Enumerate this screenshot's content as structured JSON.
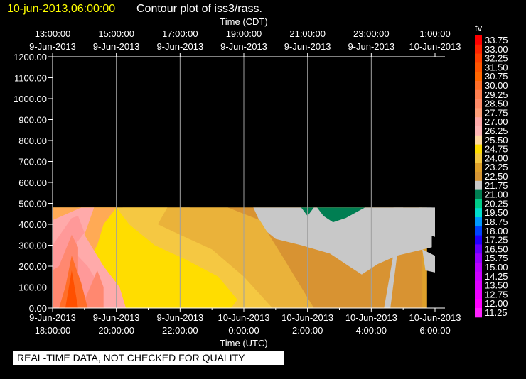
{
  "header": {
    "date": "10-jun-2013,06:00:00",
    "title": "Contour plot of iss3/rass."
  },
  "notice": "REAL-TIME DATA, NOT CHECKED FOR QUALITY",
  "chart_data": {
    "type": "heatmap",
    "top_axis": {
      "label": "Time (CDT)",
      "ticks": [
        {
          "time": "13:00:00",
          "date": "9-Jun-2013"
        },
        {
          "time": "15:00:00",
          "date": "9-Jun-2013"
        },
        {
          "time": "17:00:00",
          "date": "9-Jun-2013"
        },
        {
          "time": "19:00:00",
          "date": "9-Jun-2013"
        },
        {
          "time": "21:00:00",
          "date": "9-Jun-2013"
        },
        {
          "time": "23:00:00",
          "date": "9-Jun-2013"
        },
        {
          "time": "1:00:00",
          "date": "10-Jun-2013"
        }
      ]
    },
    "bottom_axis": {
      "label": "Time (UTC)",
      "ticks": [
        {
          "date": "9-Jun-2013",
          "time": "18:00:00"
        },
        {
          "date": "9-Jun-2013",
          "time": "20:00:00"
        },
        {
          "date": "9-Jun-2013",
          "time": "22:00:00"
        },
        {
          "date": "10-Jun-2013",
          "time": "0:00:00"
        },
        {
          "date": "10-Jun-2013",
          "time": "2:00:00"
        },
        {
          "date": "10-Jun-2013",
          "time": "4:00:00"
        },
        {
          "date": "10-Jun-2013",
          "time": "6:00:00"
        }
      ],
      "xlim_hours": [
        18,
        30
      ]
    },
    "y_axis": {
      "ticks": [
        "1200.00",
        "1100.00",
        "1000.00",
        "900.00",
        "800.00",
        "700.00",
        "600.00",
        "500.00",
        "400.00",
        "300.00",
        "200.00",
        "100.00",
        "0.00"
      ],
      "ylim": [
        0,
        1200
      ]
    },
    "legend": {
      "title": "tv",
      "placement": "right",
      "levels": [
        "33.75",
        "33.00",
        "32.25",
        "31.50",
        "30.75",
        "30.00",
        "29.25",
        "28.50",
        "27.75",
        "27.00",
        "26.25",
        "25.50",
        "24.75",
        "24.00",
        "23.25",
        "22.50",
        "21.75",
        "21.00",
        "20.25",
        "19.50",
        "18.75",
        "18.00",
        "17.25",
        "16.50",
        "15.75",
        "15.00",
        "14.25",
        "13.50",
        "12.75",
        "12.00",
        "11.25"
      ],
      "colors": [
        "#ff0000",
        "#ff2400",
        "#ff4000",
        "#ff5500",
        "#ff6600",
        "#ff6e28",
        "#ff7f50",
        "#ff8c69",
        "#ffa07a",
        "#ffaaaa",
        "#ffb6b6",
        "#ffd9a0",
        "#ffdd00",
        "#f5c842",
        "#dea02b",
        "#d49535",
        "#c8c8c8",
        "#007e52",
        "#00cc88",
        "#00ddcc",
        "#0099ff",
        "#0044ff",
        "#2200ff",
        "#6600ff",
        "#9900ff",
        "#bb00ff",
        "#cc00ff",
        "#dd00ff",
        "#ee00ff",
        "#ff00ff",
        "#ff22ff"
      ]
    },
    "data_top_height": 480,
    "regions": [
      {
        "tv": "23.25",
        "color": "#dea02b",
        "points": [
          [
            18.0,
            0
          ],
          [
            29.75,
            0
          ],
          [
            29.75,
            480
          ],
          [
            18.0,
            480
          ]
        ]
      },
      {
        "tv": "23.25",
        "color": "#d89332",
        "points": [
          [
            19.5,
            480
          ],
          [
            29.6,
            480
          ],
          [
            29.6,
            0
          ],
          [
            22.2,
            0
          ],
          [
            21.9,
            120
          ],
          [
            21.0,
            300
          ],
          [
            20.5,
            390
          ],
          [
            20.2,
            480
          ]
        ]
      },
      {
        "tv": "22.50",
        "color": "#c8c8c8",
        "points": [
          [
            24.3,
            480
          ],
          [
            29.9,
            480
          ],
          [
            29.9,
            290
          ],
          [
            28.8,
            250
          ],
          [
            28.2,
            210
          ],
          [
            27.7,
            160
          ],
          [
            27.3,
            200
          ],
          [
            26.7,
            260
          ],
          [
            25.8,
            300
          ],
          [
            25.0,
            330
          ],
          [
            24.6,
            380
          ]
        ]
      },
      {
        "tv": "22.50",
        "color": "#c8c8c8",
        "points": [
          [
            28.7,
            480
          ],
          [
            29.0,
            480
          ],
          [
            28.6,
            0
          ],
          [
            28.4,
            0
          ],
          [
            28.7,
            260
          ]
        ]
      },
      {
        "tv": "22.50",
        "color": "#c8c8c8",
        "points": [
          [
            29.5,
            480
          ],
          [
            30.0,
            480
          ],
          [
            30.0,
            340
          ],
          [
            29.6,
            360
          ]
        ]
      },
      {
        "tv": "22.50",
        "color": "#c8c8c8",
        "points": [
          [
            29.6,
            280
          ],
          [
            30.0,
            250
          ],
          [
            30.0,
            170
          ],
          [
            29.7,
            180
          ]
        ]
      },
      {
        "tv": "22.50",
        "color": "#c8c8c8",
        "points": [
          [
            22.0,
            480
          ],
          [
            22.3,
            480
          ],
          [
            22.2,
            460
          ]
        ]
      },
      {
        "tv": "21.75",
        "color": "#007e52",
        "points": [
          [
            25.8,
            480
          ],
          [
            26.2,
            480
          ],
          [
            26.0,
            440
          ]
        ]
      },
      {
        "tv": "21.75",
        "color": "#007e52",
        "points": [
          [
            26.3,
            480
          ],
          [
            27.8,
            480
          ],
          [
            27.2,
            430
          ],
          [
            26.8,
            410
          ],
          [
            26.5,
            440
          ]
        ]
      },
      {
        "tv": "24.00",
        "color": "#eab23a",
        "points": [
          [
            18.0,
            480
          ],
          [
            22.0,
            480
          ],
          [
            23.5,
            480
          ],
          [
            24.5,
            420
          ],
          [
            25.2,
            250
          ],
          [
            26.2,
            0
          ],
          [
            18.0,
            0
          ]
        ]
      },
      {
        "tv": "24.75",
        "color": "#f5c842",
        "points": [
          [
            18.0,
            480
          ],
          [
            21.6,
            480
          ],
          [
            21.3,
            400
          ],
          [
            22.0,
            350
          ],
          [
            23.0,
            280
          ],
          [
            24.0,
            150
          ],
          [
            24.9,
            0
          ],
          [
            18.0,
            0
          ]
        ]
      },
      {
        "tv": "25.50",
        "color": "#ffdd00",
        "points": [
          [
            18.8,
            480
          ],
          [
            20.0,
            480
          ],
          [
            20.4,
            400
          ],
          [
            21.2,
            300
          ],
          [
            22.2,
            230
          ],
          [
            23.2,
            150
          ],
          [
            23.8,
            40
          ],
          [
            23.6,
            0
          ],
          [
            19.0,
            0
          ],
          [
            19.2,
            200
          ]
        ]
      },
      {
        "tv": "26.25",
        "color": "#ffaa55",
        "points": [
          [
            18.0,
            480
          ],
          [
            20.0,
            480
          ],
          [
            19.6,
            400
          ],
          [
            19.4,
            300
          ],
          [
            19.0,
            200
          ],
          [
            18.9,
            120
          ],
          [
            18.8,
            0
          ],
          [
            18.0,
            0
          ]
        ]
      },
      {
        "tv": "27.00",
        "color": "#ffaaaa",
        "points": [
          [
            18.0,
            420
          ],
          [
            18.9,
            480
          ],
          [
            19.3,
            480
          ],
          [
            19.0,
            350
          ],
          [
            19.6,
            200
          ],
          [
            20.1,
            100
          ],
          [
            20.3,
            0
          ],
          [
            18.0,
            0
          ]
        ]
      },
      {
        "tv": "27.75",
        "color": "#ff9999",
        "points": [
          [
            18.0,
            300
          ],
          [
            18.6,
            430
          ],
          [
            18.8,
            440
          ],
          [
            19.0,
            360
          ],
          [
            18.6,
            280
          ],
          [
            19.1,
            200
          ],
          [
            19.5,
            100
          ],
          [
            19.5,
            0
          ],
          [
            18.0,
            0
          ]
        ]
      },
      {
        "tv": "29.25",
        "color": "#ff8870",
        "points": [
          [
            18.0,
            0
          ],
          [
            18.0,
            180
          ],
          [
            18.2,
            200
          ],
          [
            18.6,
            350
          ],
          [
            18.8,
            290
          ],
          [
            18.8,
            0
          ]
        ]
      },
      {
        "tv": "29.25",
        "color": "#ff8870",
        "points": [
          [
            18.9,
            0
          ],
          [
            19.4,
            180
          ],
          [
            19.6,
            100
          ],
          [
            19.6,
            0
          ]
        ]
      },
      {
        "tv": "30.00",
        "color": "#ff6e28",
        "points": [
          [
            18.2,
            0
          ],
          [
            18.4,
            100
          ],
          [
            18.6,
            250
          ],
          [
            18.9,
            120
          ],
          [
            19.1,
            0
          ]
        ]
      },
      {
        "tv": "31.50",
        "color": "#ff5000",
        "points": [
          [
            18.4,
            0
          ],
          [
            18.6,
            180
          ],
          [
            18.8,
            0
          ]
        ]
      }
    ]
  }
}
